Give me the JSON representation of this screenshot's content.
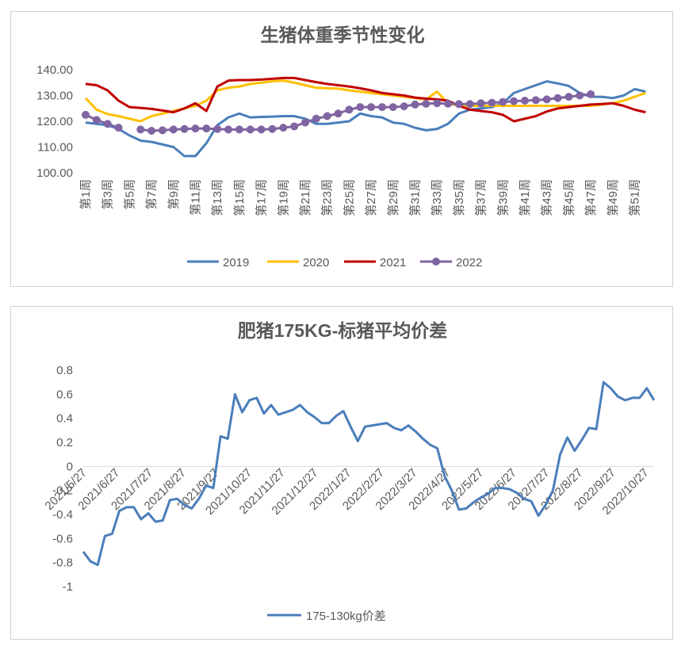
{
  "chart_data": [
    {
      "type": "line",
      "title": "生猪体重季节性变化",
      "xlabel": "",
      "ylabel": "",
      "ylim": [
        100,
        140
      ],
      "yticks": [
        "100.00",
        "110.00",
        "120.00",
        "130.00",
        "140.00"
      ],
      "categories": [
        "第1周",
        "第2周",
        "第3周",
        "第4周",
        "第5周",
        "第6周",
        "第7周",
        "第8周",
        "第9周",
        "第10周",
        "第11周",
        "第12周",
        "第13周",
        "第14周",
        "第15周",
        "第16周",
        "第17周",
        "第18周",
        "第19周",
        "第20周",
        "第21周",
        "第22周",
        "第23周",
        "第24周",
        "第25周",
        "第26周",
        "第27周",
        "第28周",
        "第29周",
        "第30周",
        "第31周",
        "第32周",
        "第33周",
        "第34周",
        "第35周",
        "第36周",
        "第37周",
        "第38周",
        "第39周",
        "第40周",
        "第41周",
        "第42周",
        "第43周",
        "第44周",
        "第45周",
        "第46周",
        "第47周",
        "第48周",
        "第49周",
        "第50周",
        "第51周",
        "第52周"
      ],
      "tick_labels": [
        "第1周",
        "第3周",
        "第5周",
        "第7周",
        "第9周",
        "第11周",
        "第13周",
        "第15周",
        "第17周",
        "第19周",
        "第21周",
        "第23周",
        "第25周",
        "第27周",
        "第29周",
        "第31周",
        "第33周",
        "第35周",
        "第37周",
        "第39周",
        "第41周",
        "第43周",
        "第45周",
        "第47周",
        "第49周",
        "第51周"
      ],
      "legend_position": "bottom",
      "grid": false,
      "series": [
        {
          "name": "2019",
          "color": "#4a7ebb",
          "marker": false,
          "values": [
            119.5,
            119,
            118.5,
            117,
            114.5,
            112.5,
            112,
            111,
            110,
            106.5,
            106.5,
            111.5,
            118.5,
            121.5,
            123,
            121.5,
            121.7,
            121.8,
            122,
            122,
            121,
            119,
            119,
            119.5,
            120,
            123,
            122,
            121.5,
            119.5,
            119,
            117.5,
            116.5,
            117,
            119,
            123,
            124.5,
            125,
            125.5,
            127,
            131,
            132.5,
            134,
            135.5,
            134.7,
            133.7,
            131,
            129.5,
            129.5,
            129,
            130,
            132.5,
            131.5
          ]
        },
        {
          "name": "2020",
          "color": "#ffc000",
          "marker": false,
          "values": [
            129,
            124.5,
            122.8,
            122,
            121,
            120,
            122,
            123,
            124,
            125,
            126,
            128,
            132,
            133,
            133.5,
            134.5,
            135,
            135.5,
            135.8,
            135,
            134,
            133,
            132.8,
            132.7,
            132,
            131.5,
            131,
            130.5,
            130,
            129.5,
            129,
            128.5,
            131.5,
            127,
            126,
            126,
            126,
            126,
            126,
            126,
            126,
            126,
            126,
            126,
            126,
            126,
            126,
            126.5,
            127,
            128,
            129.5,
            131
          ]
        },
        {
          "name": "2021",
          "color": "#c00000",
          "marker": false,
          "values": [
            134.5,
            134,
            132,
            128,
            125.5,
            125.2,
            124.8,
            124.2,
            123.5,
            125,
            127,
            124,
            133.5,
            135.8,
            136,
            136,
            136.2,
            136.5,
            136.8,
            136.8,
            136,
            135.2,
            134.5,
            134,
            133.5,
            132.8,
            132,
            131,
            130.5,
            130,
            129.2,
            128.8,
            128.5,
            128,
            126,
            124.5,
            124,
            123.5,
            122.5,
            120,
            121,
            122,
            123.8,
            125,
            125.5,
            126,
            126.5,
            126.7,
            127,
            126,
            124.5,
            123.5
          ]
        },
        {
          "name": "2022",
          "color": "#8064a2",
          "marker": true,
          "values": [
            122.5,
            120.5,
            119,
            117.5,
            null,
            116.8,
            116.3,
            116.5,
            116.8,
            117,
            117.2,
            117.2,
            117,
            116.8,
            116.8,
            116.8,
            116.8,
            117,
            117.5,
            118,
            119.5,
            121,
            122,
            123,
            124.5,
            125.5,
            125.5,
            125.5,
            125.5,
            125.8,
            126.5,
            126.8,
            127,
            126.8,
            126.7,
            126.7,
            127,
            127.2,
            127.5,
            127.8,
            128,
            128.2,
            128.5,
            129,
            129.5,
            130,
            130.5,
            null,
            null,
            null,
            null,
            null
          ]
        }
      ]
    },
    {
      "type": "line",
      "title": "肥猪175KG-标猪平均价差",
      "xlabel": "",
      "ylabel": "",
      "ylim": [
        -1,
        0.8
      ],
      "yticks": [
        "-1",
        "-0.8",
        "-0.6",
        "-0.4",
        "-0.2",
        "0",
        "0.2",
        "0.4",
        "0.6",
        "0.8"
      ],
      "tick_labels": [
        "2021/5/27",
        "2021/6/27",
        "2021/7/27",
        "2021/8/27",
        "2021/9/27",
        "2021/10/27",
        "2021/11/27",
        "2021/12/27",
        "2022/1/27",
        "2022/2/27",
        "2022/3/27",
        "2022/4/27",
        "2022/5/27",
        "2022/6/27",
        "2022/7/27",
        "2022/8/27",
        "2022/9/27",
        "2022/10/27"
      ],
      "legend_position": "bottom",
      "grid": false,
      "series": [
        {
          "name": "175-130kg价差",
          "color": "#4a7ebb",
          "values": [
            -0.71,
            -0.79,
            -0.82,
            -0.58,
            -0.56,
            -0.37,
            -0.34,
            -0.34,
            -0.44,
            -0.39,
            -0.46,
            -0.45,
            -0.28,
            -0.27,
            -0.32,
            -0.35,
            -0.27,
            -0.16,
            -0.18,
            0.25,
            0.23,
            0.6,
            0.45,
            0.55,
            0.57,
            0.44,
            0.51,
            0.43,
            0.45,
            0.47,
            0.51,
            0.45,
            0.41,
            0.36,
            0.36,
            0.42,
            0.46,
            0.33,
            0.21,
            0.33,
            0.34,
            0.35,
            0.36,
            0.32,
            0.3,
            0.34,
            0.29,
            0.23,
            0.18,
            0.15,
            -0.08,
            -0.2,
            -0.36,
            -0.35,
            -0.3,
            -0.26,
            -0.23,
            -0.18,
            -0.18,
            -0.19,
            -0.22,
            -0.27,
            -0.29,
            -0.41,
            -0.32,
            -0.2,
            0.1,
            0.24,
            0.13,
            0.22,
            0.32,
            0.31,
            0.7,
            0.65,
            0.58,
            0.55,
            0.57,
            0.57,
            0.65,
            0.55
          ]
        }
      ]
    }
  ]
}
